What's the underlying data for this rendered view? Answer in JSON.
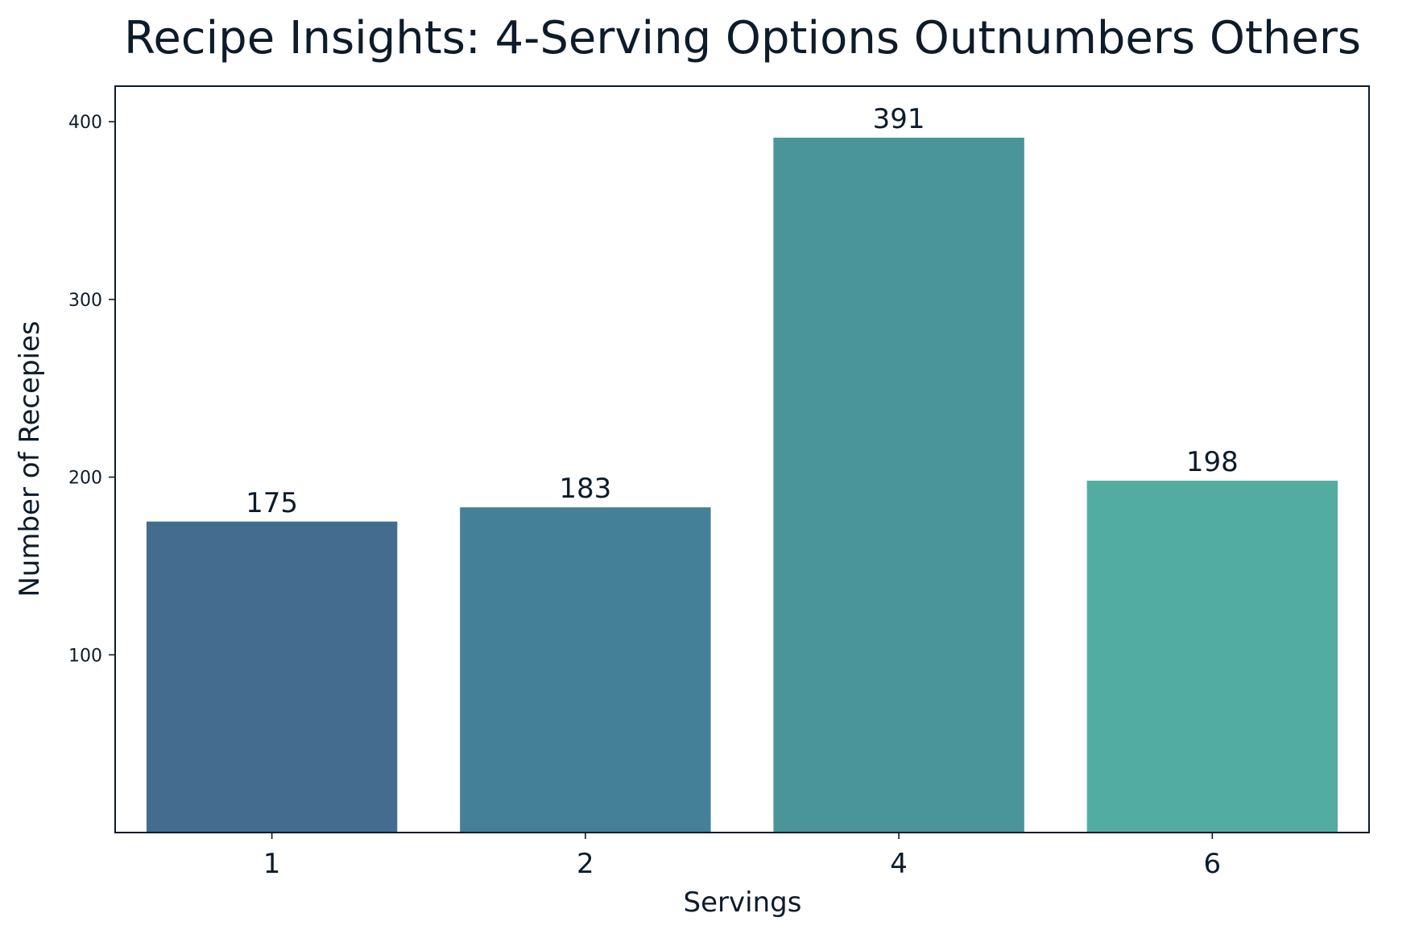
{
  "chart_data": {
    "type": "bar",
    "title": "Recipe Insights: 4-Serving Options Outnumbers Others",
    "xlabel": "Servings",
    "ylabel": "Number of Recepies",
    "categories": [
      "1",
      "2",
      "4",
      "6"
    ],
    "values": [
      175,
      183,
      391,
      198
    ],
    "data_labels": [
      "175",
      "183",
      "391",
      "198"
    ],
    "colors": [
      "#436c8f",
      "#448198",
      "#49959a",
      "#53aca1"
    ],
    "y_ticks": [
      100,
      200,
      300,
      400
    ],
    "y_tick_labels": [
      "100",
      "200",
      "300",
      "400"
    ],
    "ylim": [
      0,
      420
    ],
    "grid": false,
    "legend": "none"
  }
}
